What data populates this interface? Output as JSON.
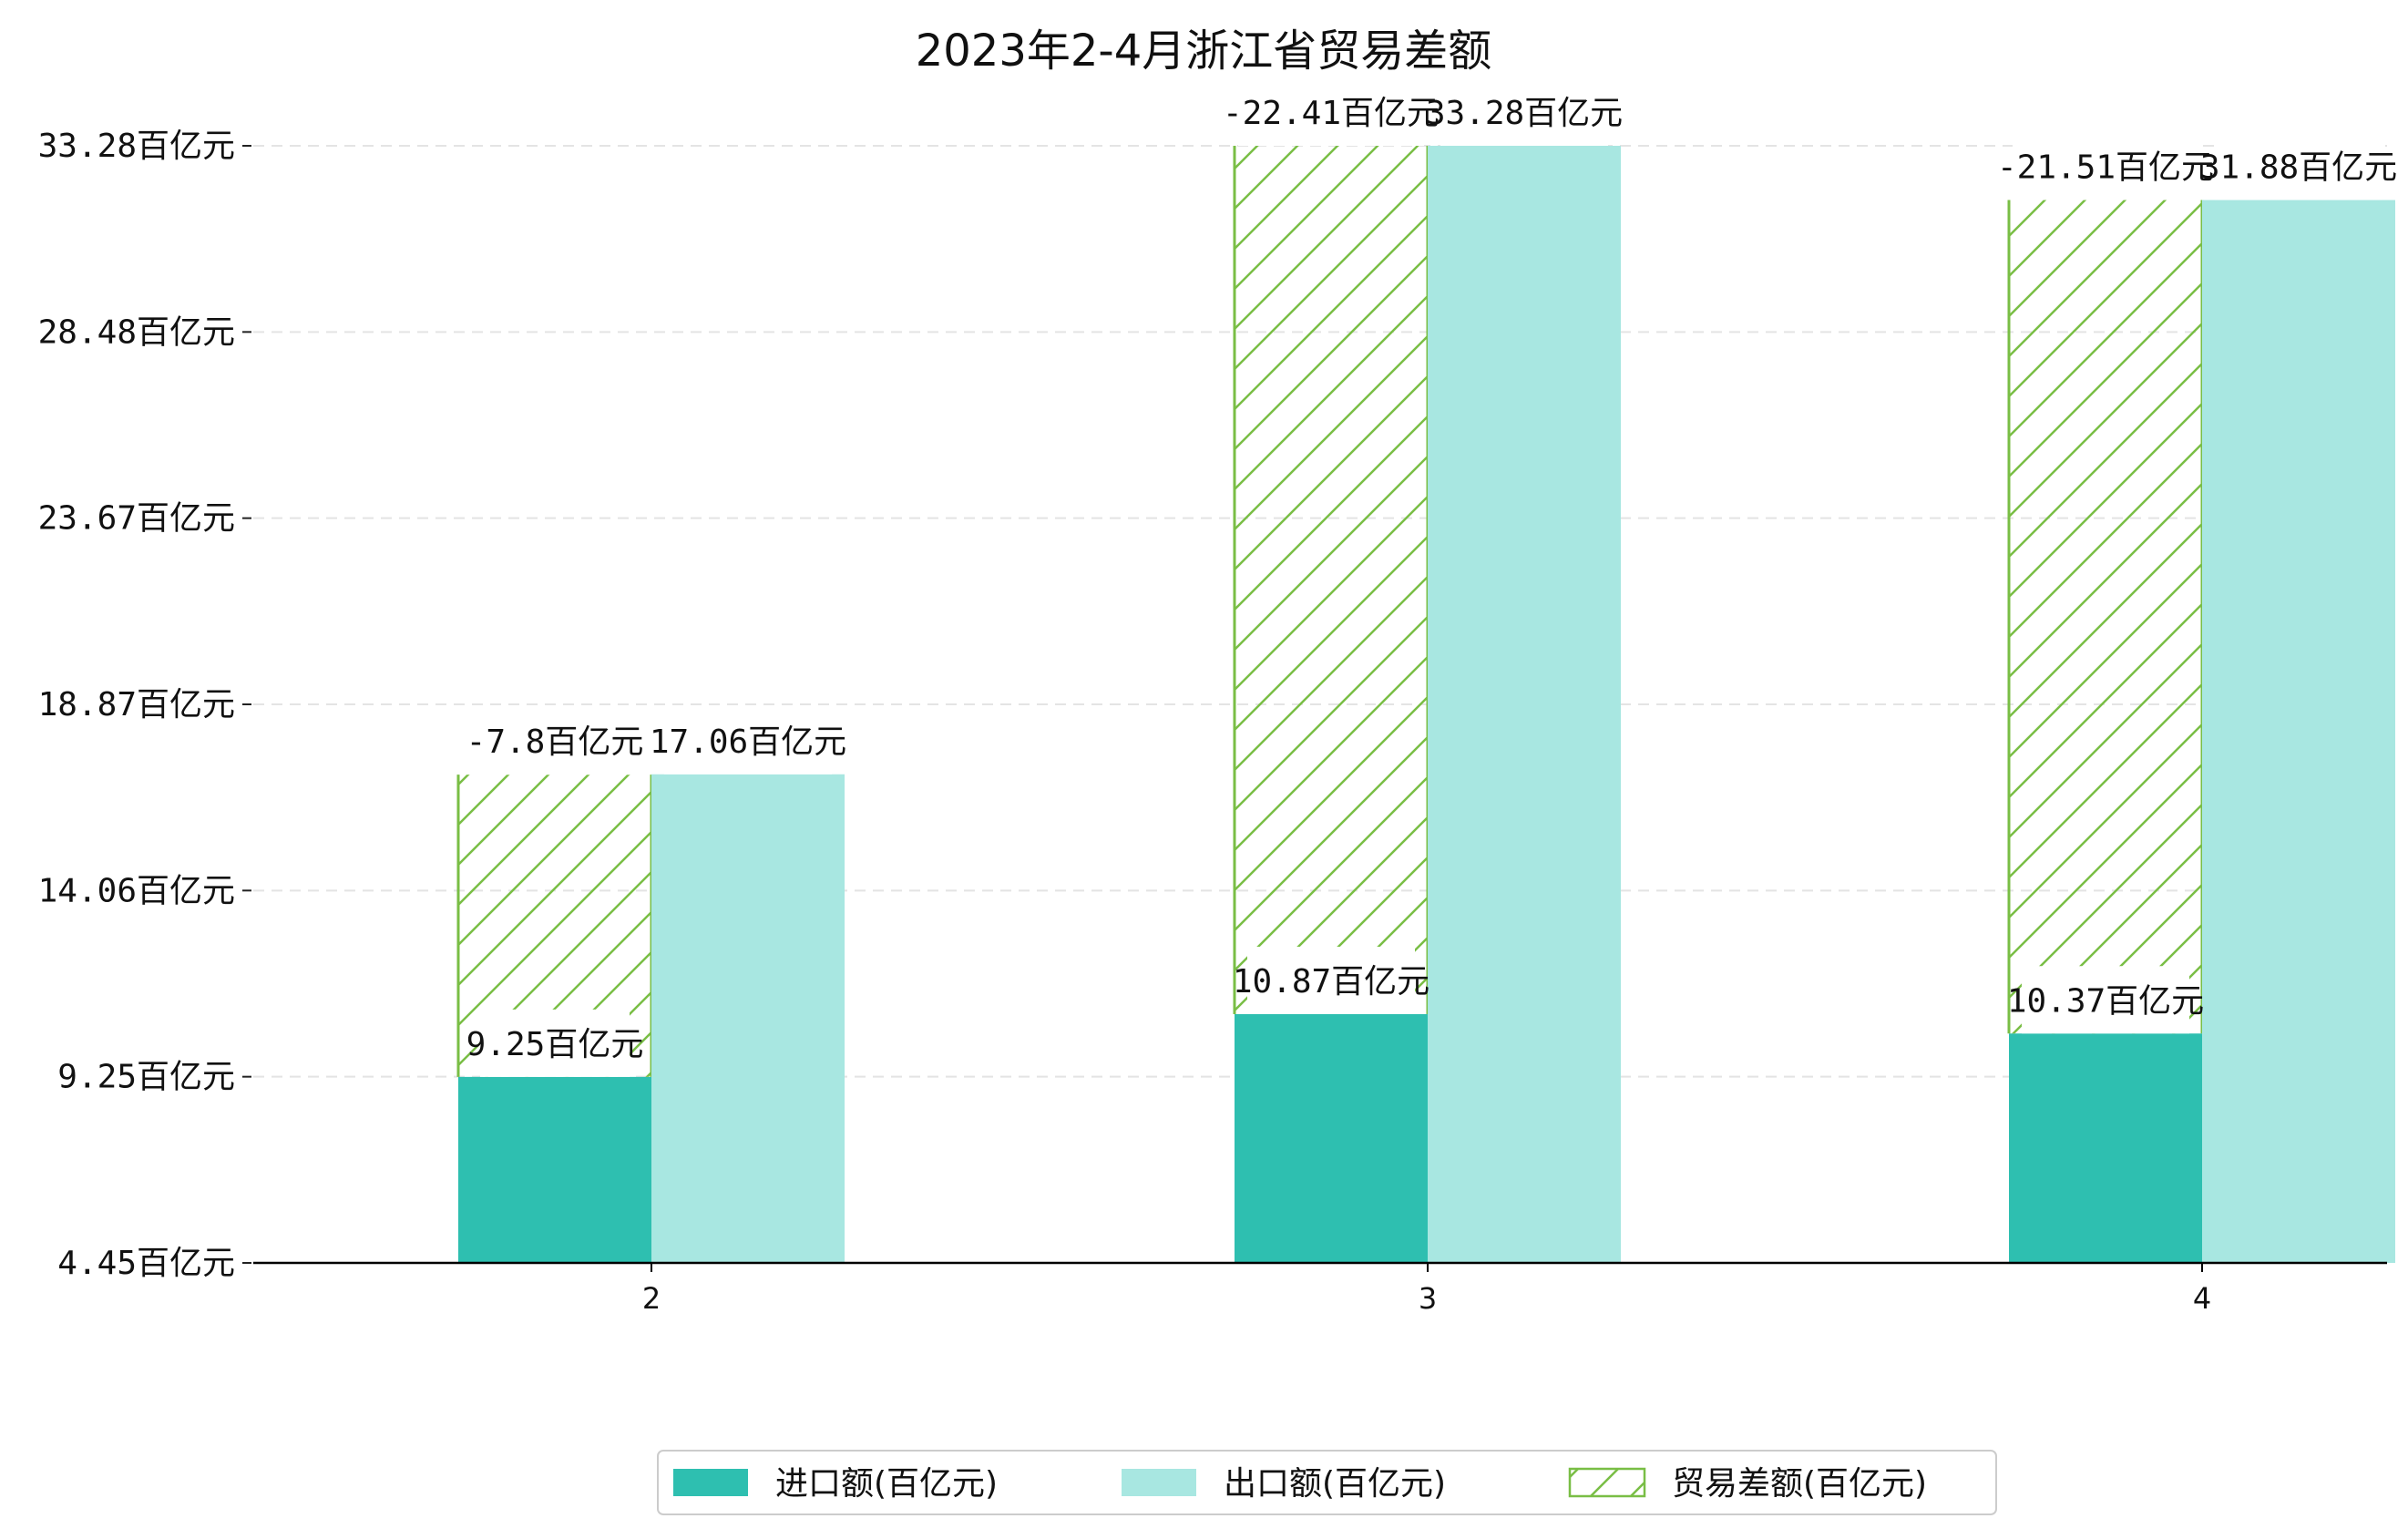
{
  "chart_data": {
    "type": "bar",
    "title": "2023年2-4月浙江省贸易差额",
    "categories": [
      "2",
      "3",
      "4"
    ],
    "unit": "百亿元",
    "y_ticks": [
      "4.45百亿元",
      "9.25百亿元",
      "14.06百亿元",
      "18.87百亿元",
      "23.67百亿元",
      "28.48百亿元",
      "33.28百亿元"
    ],
    "ylim": [
      4.45,
      33.28
    ],
    "grid": "horizontal dashed",
    "legend_position": "bottom-center",
    "series": [
      {
        "name": "进口额(百亿元)",
        "color": "#2EBFB0",
        "values": [
          9.25,
          10.87,
          10.37
        ],
        "labels": [
          "9.25百亿元",
          "10.87百亿元",
          "10.37百亿元"
        ]
      },
      {
        "name": "出口额(百亿元)",
        "color": "#A8E7E1",
        "values": [
          17.06,
          33.28,
          31.88
        ],
        "labels": [
          "17.06百亿元",
          "33.28百亿元",
          "31.88百亿元"
        ]
      },
      {
        "name": "贸易差额(百亿元)",
        "color": "#79BE45",
        "stacked_on": "进口额(百亿元)",
        "values": [
          -7.8,
          -22.41,
          -21.51
        ],
        "labels": [
          "-7.8百亿元",
          "-22.41百亿元",
          "-21.51百亿元"
        ]
      }
    ]
  }
}
